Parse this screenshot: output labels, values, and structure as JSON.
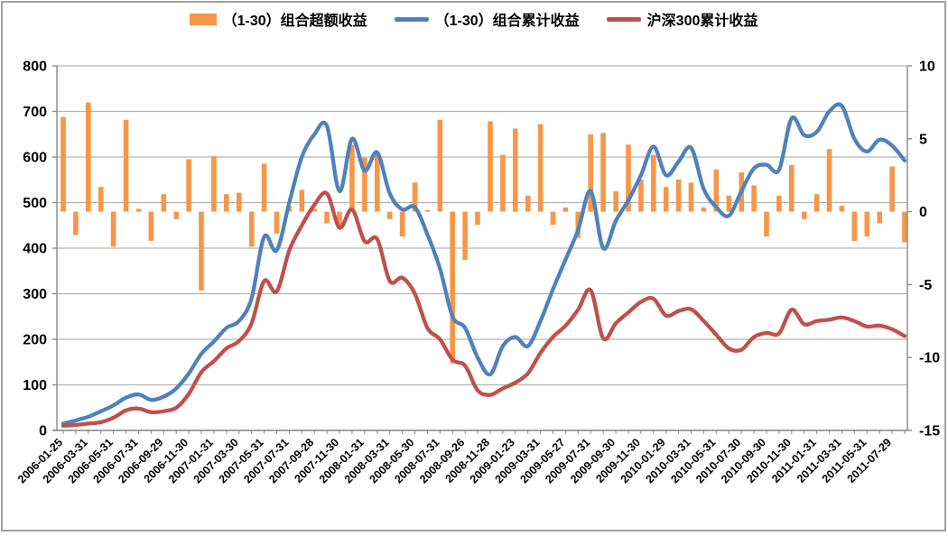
{
  "colors": {
    "bar_orange": "#F79646",
    "line_blue": "#4F81BD",
    "line_red": "#C0504D",
    "gridline": "#b3b3b3",
    "axis": "#898989",
    "frame_border": "#a0a0a0"
  },
  "legend": [
    {
      "name": "（1-30）组合超额收益",
      "type": "bar",
      "color": "#F79646"
    },
    {
      "name": "（1-30）组合累计收益",
      "type": "line",
      "color": "#4F81BD"
    },
    {
      "name": "沪深300累计收益",
      "type": "line",
      "color": "#C0504D"
    }
  ],
  "chart_data": {
    "type": "combo-bar-line",
    "title": "",
    "grid": true,
    "legend_position": "top",
    "left_axis": {
      "min": 0,
      "max": 800,
      "step": 100,
      "ticks": [
        0,
        100,
        200,
        300,
        400,
        500,
        600,
        700,
        800
      ]
    },
    "right_axis": {
      "min": -15,
      "max": 10,
      "step": 5,
      "ticks": [
        10,
        5,
        0,
        -5,
        -10,
        -15
      ],
      "bar_zero_at_left_value": 480
    },
    "tick_every": 2,
    "tick_labels": [
      "2006-01-25",
      "2006-03-31",
      "2006-05-31",
      "2006-07-31",
      "2006-09-29",
      "2006-11-30",
      "2007-01-31",
      "2007-03-30",
      "2007-05-31",
      "2007-07-31",
      "2007-09-28",
      "2007-11-30",
      "2008-01-31",
      "2008-03-31",
      "2008-05-30",
      "2008-07-31",
      "2008-09-26",
      "2008-11-28",
      "2009-01-23",
      "2009-03-31",
      "2009-05-27",
      "2009-07-31",
      "2009-09-30",
      "2009-11-30",
      "2010-01-29",
      "2010-03-31",
      "2010-05-31",
      "2010-07-30",
      "2010-09-30",
      "2010-11-30",
      "2011-01-31",
      "2011-03-31",
      "2011-05-31",
      "2011-07-29"
    ],
    "series": [
      {
        "name": "（1-30）组合超额收益",
        "type": "bar",
        "axis": "right",
        "color": "#F79646",
        "values": [
          6.5,
          -1.6,
          7.5,
          1.7,
          -2.4,
          6.3,
          0.2,
          -2.0,
          1.2,
          -0.5,
          3.6,
          -5.4,
          3.8,
          1.2,
          1.3,
          -2.4,
          3.3,
          -1.5,
          0.4,
          1.5,
          0.2,
          -0.8,
          -1.2,
          4.6,
          3.7,
          4.1,
          -0.5,
          -1.7,
          2.0,
          0.1,
          6.3,
          -10.4,
          -3.3,
          -0.9,
          6.2,
          3.9,
          5.7,
          1.1,
          6.0,
          -0.9,
          0.3,
          -1.8,
          5.3,
          5.4,
          1.4,
          4.6,
          2.2,
          3.9,
          1.7,
          2.2,
          2.0,
          0.3,
          2.9,
          1.1,
          2.7,
          1.8,
          -1.7,
          1.1,
          3.2,
          -0.5,
          1.2,
          4.3,
          0.4,
          -2.0,
          -1.7,
          -0.8,
          3.1,
          -2.1
        ]
      },
      {
        "name": "（1-30）组合累计收益",
        "type": "line",
        "axis": "left",
        "color": "#4F81BD",
        "values": [
          15,
          22,
          30,
          42,
          55,
          72,
          79,
          67,
          74,
          92,
          125,
          168,
          195,
          225,
          240,
          290,
          425,
          395,
          500,
          600,
          650,
          668,
          525,
          640,
          570,
          610,
          520,
          485,
          490,
          430,
          355,
          250,
          225,
          160,
          123,
          185,
          205,
          185,
          240,
          310,
          375,
          440,
          525,
          400,
          460,
          505,
          560,
          623,
          560,
          590,
          620,
          530,
          490,
          471,
          525,
          575,
          583,
          572,
          685,
          648,
          655,
          700,
          712,
          640,
          612,
          638,
          625,
          592
        ]
      },
      {
        "name": "沪深300累计收益",
        "type": "line",
        "axis": "left",
        "color": "#C0504D",
        "values": [
          10,
          12,
          15,
          18,
          28,
          44,
          48,
          40,
          42,
          50,
          80,
          128,
          152,
          180,
          196,
          235,
          328,
          305,
          395,
          450,
          495,
          520,
          445,
          485,
          415,
          420,
          328,
          335,
          300,
          225,
          200,
          155,
          142,
          88,
          78,
          92,
          105,
          125,
          170,
          205,
          230,
          265,
          308,
          202,
          235,
          259,
          282,
          289,
          252,
          262,
          266,
          240,
          210,
          180,
          177,
          205,
          214,
          213,
          265,
          233,
          240,
          243,
          248,
          240,
          228,
          230,
          222,
          207
        ]
      }
    ]
  }
}
